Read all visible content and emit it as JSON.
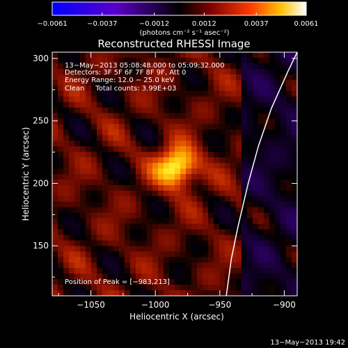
{
  "chart_data": {
    "type": "heatmap",
    "title": "Reconstructed RHESSI Image",
    "xlabel": "Heliocentric X (arcsec)",
    "ylabel": "Heliocentric Y (arcsec)",
    "xlim": [
      -1080,
      -890
    ],
    "ylim": [
      110,
      305
    ],
    "xticks": [
      -1050,
      -1000,
      -950,
      -900
    ],
    "xtick_labels": [
      "−1050",
      "−1000",
      "−950",
      "−900"
    ],
    "yticks": [
      150,
      200,
      250,
      300
    ],
    "ytick_labels": [
      "150",
      "200",
      "250",
      "300"
    ],
    "colorbar": {
      "ticks": [
        -0.0061,
        -0.0037,
        -0.0012,
        0.0012,
        0.0037,
        0.0061
      ],
      "tick_labels": [
        "−0.0061",
        "−0.0037",
        "−0.0012",
        "0.0012",
        "0.0037",
        "0.0061"
      ],
      "unit_label": "(photons cm⁻² s⁻¹ asec⁻²)",
      "colors": [
        "#0000ff",
        "#6000c0",
        "#000000",
        "#800000",
        "#ff4000",
        "#ffd000",
        "#ffffff"
      ]
    },
    "annotations": [
      "13−May−2013 05:08:48.000 to 05:09:32.000",
      "Detectors: 3F 5F 6F 7F 8F 9F, Att 0",
      "Energy Range: 12.0 − 25.0 keV",
      "Clean     Total counts: 3.99E+03"
    ],
    "peak": {
      "x": -983,
      "y": 213,
      "label": "Position of Peak = [−983,213]"
    },
    "limb_curve": [
      [
        -945,
        110
      ],
      [
        -941,
        140
      ],
      [
        -936,
        165
      ],
      [
        -928,
        200
      ],
      [
        -920,
        230
      ],
      [
        -910,
        260
      ],
      [
        -897,
        290
      ],
      [
        -890,
        305
      ]
    ]
  },
  "footer_timestamp": "13−May−2013 19:42"
}
